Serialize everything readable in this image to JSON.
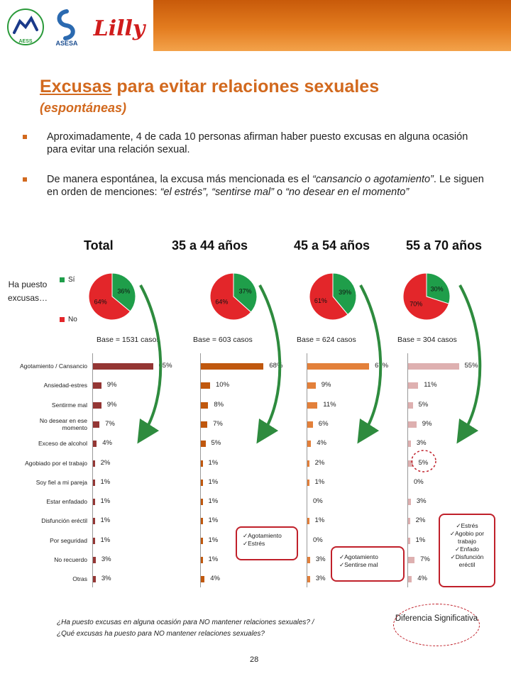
{
  "logos": {
    "aess": "AESS",
    "asesa": "ASESA",
    "lilly": "Lilly"
  },
  "title": {
    "underlined": "Excusas",
    "rest": " para evitar relaciones sexuales",
    "subtitle": "(espontáneas)"
  },
  "bullets": [
    {
      "text": "Aproximadamente, 4 de cada 10 personas afirman haber puesto excusas en alguna ocasión para evitar una relación sexual."
    },
    {
      "t1": "De manera espontánea, la excusa más mencionada  es el ",
      "i1": "“cansancio o agotamiento”",
      "t2": ". Le siguen en orden de menciones: ",
      "i2": "“el estrés”, “sentirse mal”",
      "t3": " o ",
      "i3": "“no desear en el momento”"
    }
  ],
  "segments": [
    "Total",
    "35 a 44 años",
    "45 a 54 años",
    "55 a 70 años"
  ],
  "pie_question": "Ha puesto excusas…",
  "colors": {
    "si": "#1f9e4a",
    "no": "#e3262a",
    "accent": "#d2691e",
    "red_outline": "#c0202a",
    "arrow": "#2e8b3e"
  },
  "bar_colors": [
    "#943634",
    "#c0580e",
    "#e3803a",
    "#deb0b0"
  ],
  "chart_data": [
    {
      "type": "pie",
      "legend": [
        "Sí",
        "No"
      ],
      "groups": [
        {
          "name": "Total",
          "values": [
            36,
            64
          ],
          "labels": [
            "36%",
            "64%"
          ]
        },
        {
          "name": "35 a 44 años",
          "values": [
            37,
            64
          ],
          "labels": [
            "37%",
            "64%"
          ]
        },
        {
          "name": "45 a 54 años",
          "values": [
            39,
            61
          ],
          "labels": [
            "39%",
            "61%"
          ]
        },
        {
          "name": "55 a 70 años",
          "values": [
            30,
            70
          ],
          "labels": [
            "30%",
            "70%"
          ]
        }
      ]
    },
    {
      "type": "bar",
      "orientation": "horizontal",
      "categories": [
        "Agotamiento / Cansancio",
        "Ansiedad-estres",
        "Sentirme mal",
        "No desear en ese momento",
        "Exceso de alcohol",
        "Agobiado por el trabajo",
        "Soy fiel a mi pareja",
        "Estar enfadado",
        "Disfunción eréctil",
        "Por seguridad",
        "No recuerdo",
        "Otras"
      ],
      "series": [
        {
          "name": "Total",
          "base": "Base = 1531 casos",
          "values": [
            65,
            9,
            9,
            7,
            4,
            2,
            1,
            1,
            1,
            1,
            3,
            3
          ]
        },
        {
          "name": "35 a 44 años",
          "base": "Base = 603 casos",
          "values": [
            68,
            10,
            8,
            7,
            5,
            1,
            1,
            1,
            1,
            1,
            1,
            4
          ]
        },
        {
          "name": "45 a 54 años",
          "base": "Base = 624 casos",
          "values": [
            67,
            9,
            11,
            6,
            4,
            2,
            1,
            0,
            1,
            0,
            3,
            3
          ]
        },
        {
          "name": "55 a 70 años",
          "base": "Base = 304 casos",
          "values": [
            55,
            11,
            5,
            9,
            3,
            5,
            0,
            3,
            2,
            1,
            7,
            4
          ]
        }
      ]
    }
  ],
  "notes": [
    [
      "Agotamiento",
      "Estrés"
    ],
    [
      "Agotamiento",
      "Sentirse mal"
    ],
    [
      "Estrés",
      "Agobio por",
      "trabajo",
      "Enfado",
      "Disfunción",
      "eréctil"
    ]
  ],
  "questions": [
    "¿Ha puesto excusas en alguna ocasión para NO mantener relaciones sexuales? /",
    "¿Qué excusas ha puesto para NO mantener relaciones sexuales?"
  ],
  "diff_label": "Diferencia Significativa",
  "page_number": "28"
}
